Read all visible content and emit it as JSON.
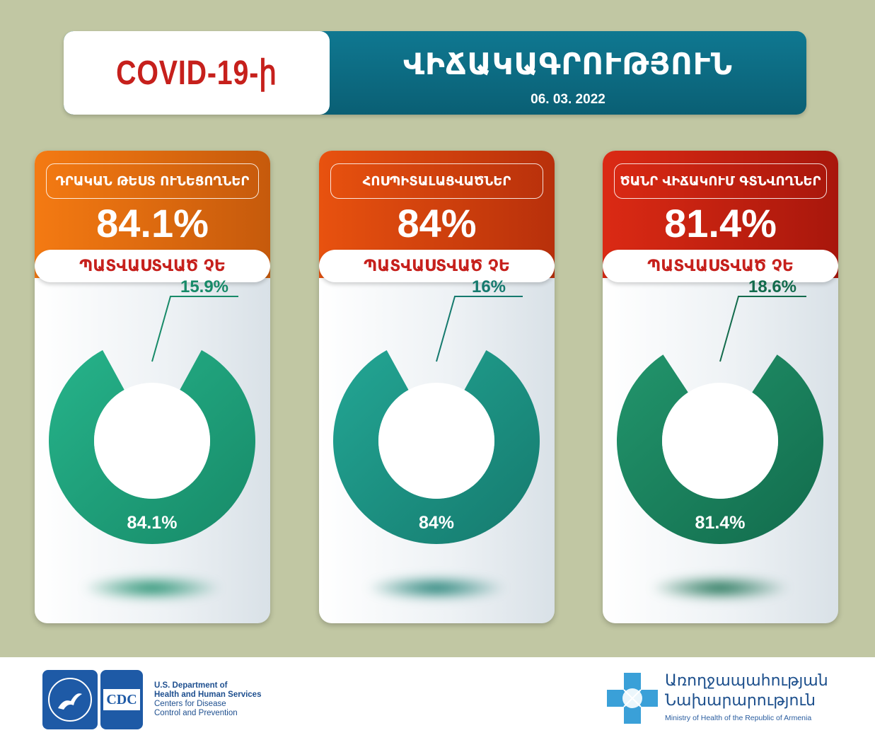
{
  "header": {
    "title": "COVID-19-ի",
    "subtitle": "ՎԻՃԱԿԱԳՐՈՒԹՅՈՒՆ",
    "date": "06. 03. 2022"
  },
  "cards": [
    {
      "label": "ԴՐԱԿԱՆ ԹԵՍՏ ՈՒՆԵՑՈՂՆԵՐ",
      "big_value": "84.1%",
      "pill": "ՊԱՏՎԱՍՏՎԱԾ ՉԵ",
      "top_color_a": "#f47a12",
      "top_color_b": "#c65a0c",
      "donut_color_a": "#26b38a",
      "donut_color_b": "#178a68"
    },
    {
      "label": "ՀՈՍՊԻՏԱԼԱՑՎԱԾՆԵՐ",
      "big_value": "84%",
      "pill": "ՊԱՏՎԱՍՏՎԱԾ ՉԵ",
      "top_color_a": "#e8520f",
      "top_color_b": "#b8300b",
      "donut_color_a": "#23a694",
      "donut_color_b": "#157a6e"
    },
    {
      "label": "ԾԱՆՐ ՎԻՃԱԿՈՒՄ ԳՏՆՎՈՂՆԵՐ",
      "big_value": "81.4%",
      "pill": "ՊԱՏՎԱՍՏՎԱԾ ՉԵ",
      "top_color_a": "#db2a14",
      "top_color_b": "#a8170c",
      "donut_color_a": "#22956c",
      "donut_color_b": "#126b4c"
    }
  ],
  "chart_data": [
    {
      "type": "pie",
      "title": "ԴՐԱԿԱՆ ԹԵՍՏ ՈՒՆԵՑՈՂՆԵՐ",
      "categories": [
        "ՊԱՏՎԱՍՏՎԱԾ ՉԵ",
        ""
      ],
      "values": [
        84.1,
        15.9
      ],
      "labels": [
        "84.1%",
        "15.9%"
      ]
    },
    {
      "type": "pie",
      "title": "ՀՈՍՊԻՏԱԼԱՑՎԱԾՆԵՐ",
      "categories": [
        "ՊԱՏՎԱՍՏՎԱԾ ՉԵ",
        ""
      ],
      "values": [
        84,
        16
      ],
      "labels": [
        "84%",
        "16%"
      ]
    },
    {
      "type": "pie",
      "title": "ԾԱՆՐ ՎԻՃԱԿՈՒՄ ԳՏՆՎՈՂՆԵՐ",
      "categories": [
        "ՊԱՏՎԱՍՏՎԱԾ ՉԵ",
        ""
      ],
      "values": [
        81.4,
        18.6
      ],
      "labels": [
        "81.4%",
        "18.6%"
      ]
    }
  ],
  "footer": {
    "cdc_logo": "CDC",
    "hhs_lines": [
      "U.S. Department of",
      "Health and Human Services",
      "Centers for Disease",
      "Control and Prevention"
    ],
    "moh_line1": "Առողջապահության",
    "moh_line2": "Նախարարություն",
    "moh_line3": "Ministry of Health of the Republic of Armenia"
  }
}
